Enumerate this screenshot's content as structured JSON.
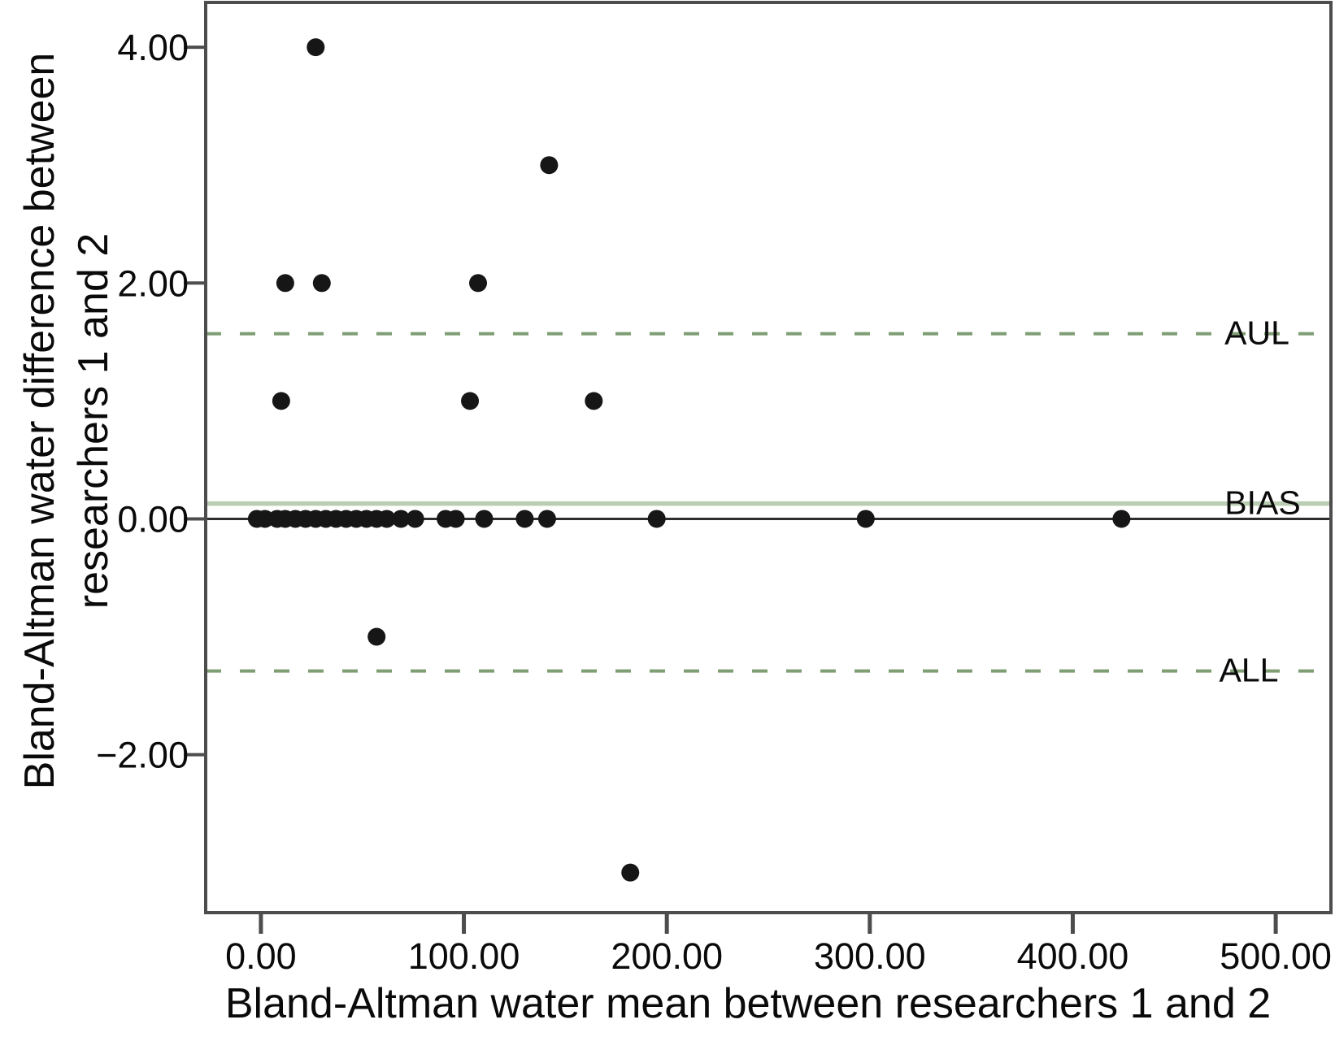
{
  "chart_data": {
    "type": "scatter",
    "title": "",
    "xlabel": "Bland-Altman water mean between researchers 1 and 2",
    "ylabel": "Bland-Altman water difference between researchers 1 and 2",
    "ylabel_lines": [
      "Bland-Altman water difference between",
      "researchers 1 and 2"
    ],
    "xlim": [
      -27.2,
      527.2
    ],
    "ylim": [
      -3.34,
      4.38
    ],
    "grid": false,
    "legend": false,
    "x_ticks": [
      {
        "value": 0,
        "label": "0.00"
      },
      {
        "value": 100,
        "label": "100.00"
      },
      {
        "value": 200,
        "label": "200.00"
      },
      {
        "value": 300,
        "label": "300.00"
      },
      {
        "value": 400,
        "label": "400.00"
      },
      {
        "value": 500,
        "label": "500.00"
      }
    ],
    "y_ticks": [
      {
        "value": 4,
        "label": "4.00"
      },
      {
        "value": 2,
        "label": "2.00"
      },
      {
        "value": 0,
        "label": "0.00"
      },
      {
        "value": -2,
        "label": "−2.00"
      }
    ],
    "zero_line": {
      "value": 0
    },
    "reference_lines": [
      {
        "id": "aul",
        "label": "AUL",
        "value": 1.57,
        "style": "dashed"
      },
      {
        "id": "bias",
        "label": "BIAS",
        "value": 0.13,
        "style": "solid"
      },
      {
        "id": "all",
        "label": "ALL",
        "value": -1.29,
        "style": "dashed"
      }
    ],
    "points": [
      [
        27,
        4
      ],
      [
        142,
        3
      ],
      [
        12,
        2
      ],
      [
        30,
        2
      ],
      [
        107,
        2
      ],
      [
        10,
        1
      ],
      [
        103,
        1
      ],
      [
        164,
        1
      ],
      [
        -2,
        0
      ],
      [
        2,
        0
      ],
      [
        8,
        0
      ],
      [
        12,
        0
      ],
      [
        17,
        0
      ],
      [
        22,
        0
      ],
      [
        27,
        0
      ],
      [
        32,
        0
      ],
      [
        37,
        0
      ],
      [
        42,
        0
      ],
      [
        47,
        0
      ],
      [
        52,
        0
      ],
      [
        57,
        0
      ],
      [
        62,
        0
      ],
      [
        69,
        0
      ],
      [
        76,
        0
      ],
      [
        91,
        0
      ],
      [
        96,
        0
      ],
      [
        110,
        0
      ],
      [
        130,
        0
      ],
      [
        141,
        0
      ],
      [
        195,
        0
      ],
      [
        298,
        0
      ],
      [
        424,
        0
      ],
      [
        57,
        -1
      ],
      [
        182,
        -3
      ]
    ]
  },
  "colors": {
    "point": "#161616",
    "dashed_line": "#7f9e74",
    "bias_line": "#b9cdb2",
    "zero_line": "#2e2e2e",
    "frame": "#4d4d4d",
    "text": "#0a0a0a"
  }
}
